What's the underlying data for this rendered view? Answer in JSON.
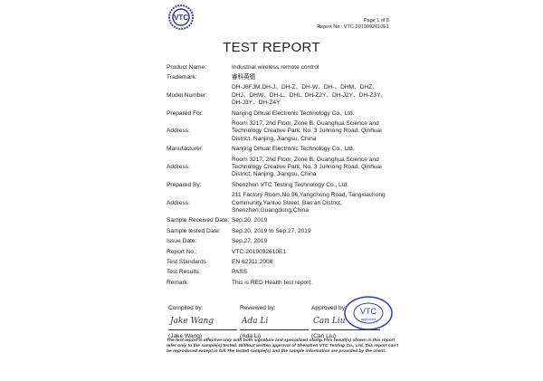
{
  "header": {
    "page": "Page 1 of 8",
    "report_no": "Report No.: VTC-2019092610E1",
    "logo_text": "VTC"
  },
  "title": "TEST REPORT",
  "rows": [
    {
      "label": "Product Name:",
      "value": "Industrial wireless remote control"
    },
    {
      "label": "Trademark:",
      "value": "睿科英德"
    },
    {
      "label": "Model Number:",
      "value": "DH-J6FJM,DH-J、DH-Z、DH-W、DH-、DHM、DHZ、DHJ、DHW、DH-L、DHL, DH-Z2Y、DH-J2Y、DH-Z3Y、DH-J3Y、DH-Z4Y"
    },
    {
      "label": "Prepared For:",
      "value": "Nanjing Dihual Electronic Technology Co., Ltd."
    },
    {
      "label": "Address:",
      "value": "Room 3217, 2nd Floor, Zone B, Guanghua Science and Technology Creative Park, No. 3 Junnong Road, Qinhuai District, Nanjing, Jiangsu, China"
    },
    {
      "label": "Manufacturer:",
      "value": "Nanjing Dihual Electronic Technology Co., Ltd."
    },
    {
      "label": "Address:",
      "value": "Room 3217, 2nd Floor, Zone B, Guanghua Science and Technology Creative Park, No. 3 Junnong Road, Qinhuai District, Nanjing, Jiangsu, China"
    },
    {
      "label": "Prepared By:",
      "value": "Shenzhen VTC Testing Technology Co., Ltd."
    },
    {
      "label": "Address:",
      "value": "211 Factory Room,No.96,Yangchong Road, Tangxiachong Community,Yanluo Street, Bao'an District, Shenzhen,Guangdong,China"
    },
    {
      "label": "Sample Received Date:",
      "value": "Sep.20, 2019"
    },
    {
      "label": "Sample tested Date:",
      "value": "Sep.20, 2019 to Sep.27, 2019"
    },
    {
      "label": "Issue Date:",
      "value": "Sep.27, 2019"
    },
    {
      "label": "Report No.:",
      "value": "VTC-2019092610E1"
    },
    {
      "label": "Test Standards",
      "value": "EN 62311:2008"
    },
    {
      "label": "Test Results",
      "value": "PASS"
    },
    {
      "label": "Remark:",
      "value": "This is RED Health test report."
    }
  ],
  "signatures": [
    {
      "role": "Compiled by:",
      "signature": "Jake Wang",
      "name": "(Jake Wang)"
    },
    {
      "role": "Reviewed by:",
      "signature": "Ada Li",
      "name": "(Ada Li)"
    },
    {
      "role": "Approved by:",
      "signature": "Can Liu",
      "name": "(Can Liu)"
    }
  ],
  "stamp": {
    "text": "VTC",
    "sub": "approved",
    "ring": "VTC Testing Technology",
    "color": "#2a3fb8"
  },
  "footer": "The test report is effective only with both signature and specialized stamp.This result(s) shown in this report refer only to the sample(s) tested. Without written approval of Shenzhen VTC Testing Co., Ltd, this report can't be reproduced except in full.The tested sample(s) and the sample information are provided by the client."
}
